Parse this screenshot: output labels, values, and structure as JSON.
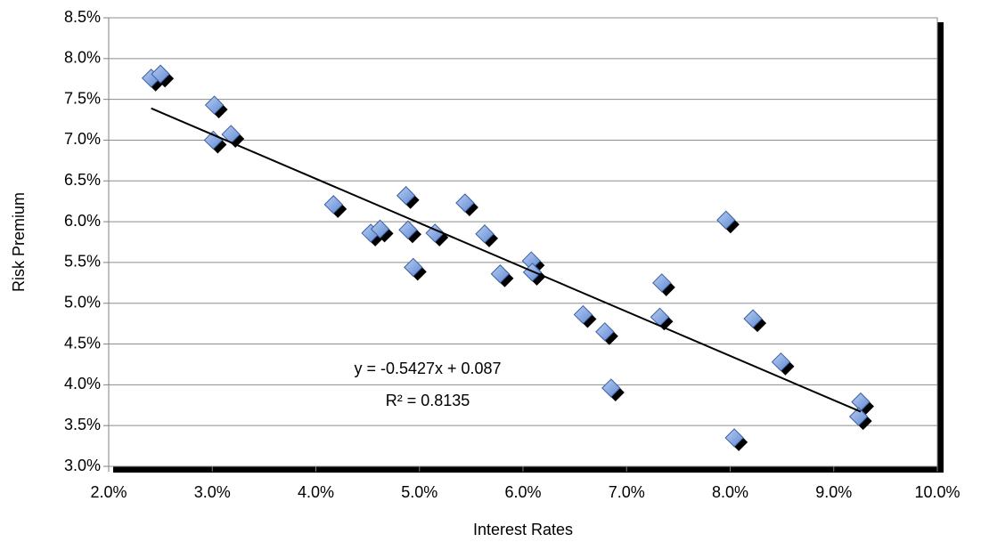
{
  "chart_data": {
    "type": "scatter",
    "x_label": "Interest Rates",
    "y_label": "Risk Premium",
    "series": [
      {
        "name": "Risk Premium",
        "color": "#7da4e4",
        "x": [
          2.41,
          2.5,
          3.02,
          3.01,
          3.18,
          4.17,
          4.87,
          5.44,
          4.53,
          4.62,
          4.89,
          5.15,
          5.63,
          4.94,
          5.78,
          6.08,
          6.09,
          6.58,
          6.79,
          6.85,
          7.32,
          7.34,
          7.96,
          8.22,
          8.49,
          9.26,
          9.24,
          8.04
        ],
        "values": [
          7.76,
          7.81,
          7.43,
          7.0,
          7.07,
          6.21,
          6.32,
          6.23,
          5.86,
          5.91,
          5.9,
          5.86,
          5.85,
          5.44,
          5.36,
          5.52,
          5.38,
          4.86,
          4.65,
          3.96,
          4.83,
          5.25,
          6.02,
          4.81,
          4.28,
          3.79,
          3.61,
          3.35
        ]
      }
    ],
    "trendline": {
      "x": [
        2.41,
        9.26
      ],
      "values": [
        7.39,
        3.67
      ],
      "color": "#000000"
    },
    "annotations": [
      "y = -0.5427x + 0.087",
      "R² = 0.8135"
    ],
    "xlim": [
      2,
      10
    ],
    "ylim": [
      3,
      8.5
    ],
    "xticks": [
      {
        "value": 2,
        "label": "2.0%"
      },
      {
        "value": 3,
        "label": "3.0%"
      },
      {
        "value": 4,
        "label": "4.0%"
      },
      {
        "value": 5,
        "label": "5.0%"
      },
      {
        "value": 6,
        "label": "6.0%"
      },
      {
        "value": 7,
        "label": "7.0%"
      },
      {
        "value": 8,
        "label": "8.0%"
      },
      {
        "value": 9,
        "label": "9.0%"
      },
      {
        "value": 10,
        "label": "10.0%"
      }
    ],
    "yticks": [
      {
        "value": 3,
        "label": "3.0%"
      },
      {
        "value": 3.5,
        "label": "3.5%"
      },
      {
        "value": 4,
        "label": "4.0%"
      },
      {
        "value": 4.5,
        "label": "4.5%"
      },
      {
        "value": 5,
        "label": "5.0%"
      },
      {
        "value": 5.5,
        "label": "5.5%"
      },
      {
        "value": 6,
        "label": "6.0%"
      },
      {
        "value": 6.5,
        "label": "6.5%"
      },
      {
        "value": 7,
        "label": "7.0%"
      },
      {
        "value": 7.5,
        "label": "7.5%"
      },
      {
        "value": 8,
        "label": "8.0%"
      },
      {
        "value": 8.5,
        "label": "8.5%"
      }
    ],
    "grid": true
  }
}
